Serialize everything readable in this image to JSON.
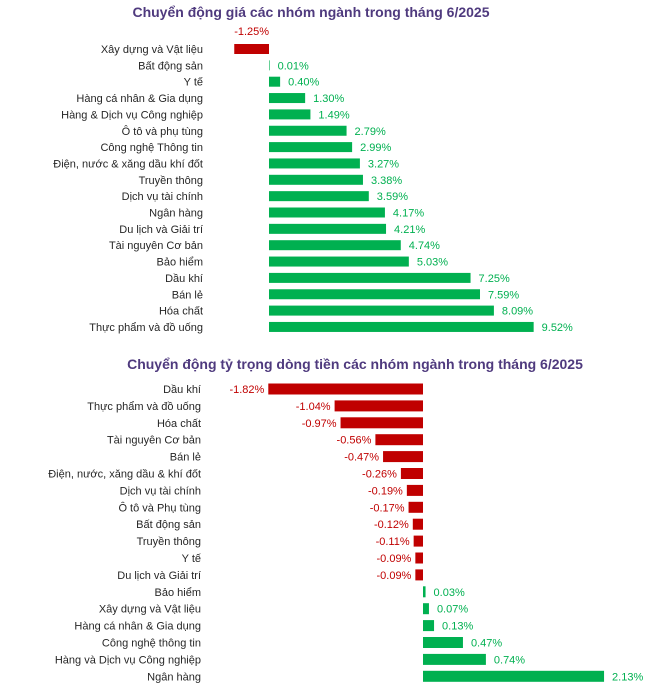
{
  "colors": {
    "positive": "#00b050",
    "negative": "#c00000",
    "title": "#4f3a7e"
  },
  "chart_data": [
    {
      "type": "bar",
      "orientation": "horizontal",
      "title": "Chuyển động giá các nhóm ngành trong tháng 6/2025",
      "unit": "%",
      "categories": [
        "Xây dựng và Vật liệu",
        "Bất động sản",
        "Y tế",
        "Hàng cá nhân & Gia dụng",
        "Hàng & Dịch vụ Công nghiệp",
        "Ô tô và phụ tùng",
        "Công nghệ Thông tin",
        "Điện, nước & xăng dầu khí đốt",
        "Truyền thông",
        "Dịch vụ tài chính",
        "Ngân hàng",
        "Du lịch và Giải trí",
        "Tài nguyên Cơ bản",
        "Bảo hiểm",
        "Dầu khí",
        "Bán lẻ",
        "Hóa chất",
        "Thực phẩm và đồ uống"
      ],
      "values": [
        -1.25,
        0.01,
        0.4,
        1.3,
        1.49,
        2.79,
        2.99,
        3.27,
        3.38,
        3.59,
        4.17,
        4.21,
        4.74,
        5.03,
        7.25,
        7.59,
        8.09,
        9.52
      ],
      "labels": [
        "-1.25%",
        "0.01%",
        "0.40%",
        "1.30%",
        "1.49%",
        "2.79%",
        "2.99%",
        "3.27%",
        "3.38%",
        "3.59%",
        "4.17%",
        "4.21%",
        "4.74%",
        "5.03%",
        "7.25%",
        "7.59%",
        "8.09%",
        "9.52%"
      ],
      "grid": false,
      "legend": "none"
    },
    {
      "type": "bar",
      "orientation": "horizontal",
      "title": "Chuyển động tỷ trọng dòng tiền các nhóm ngành trong tháng 6/2025",
      "unit": "%",
      "categories": [
        "Dầu khí",
        "Thực phẩm và đồ uống",
        "Hóa chất",
        "Tài nguyên Cơ bản",
        "Bán lẻ",
        "Điện, nước, xăng dầu & khí đốt",
        "Dịch vụ tài chính",
        "Ô tô và Phụ tùng",
        "Bất động sản",
        "Truyền thông",
        "Y tế",
        "Du lịch và Giải trí",
        "Bảo hiểm",
        "Xây dựng và Vật liệu",
        "Hàng cá nhân & Gia dụng",
        "Công nghệ thông tin",
        "Hàng và Dịch vụ Công nghiệp",
        "Ngân hàng"
      ],
      "values": [
        -1.82,
        -1.04,
        -0.97,
        -0.56,
        -0.47,
        -0.26,
        -0.19,
        -0.17,
        -0.12,
        -0.11,
        -0.09,
        -0.09,
        0.03,
        0.07,
        0.13,
        0.47,
        0.74,
        2.13
      ],
      "labels": [
        "-1.82%",
        "-1.04%",
        "-0.97%",
        "-0.56%",
        "-0.47%",
        "-0.26%",
        "-0.19%",
        "-0.17%",
        "-0.12%",
        "-0.11%",
        "-0.09%",
        "-0.09%",
        "0.03%",
        "0.07%",
        "0.13%",
        "0.47%",
        "0.74%",
        "2.13%"
      ],
      "grid": false,
      "legend": "none"
    }
  ]
}
